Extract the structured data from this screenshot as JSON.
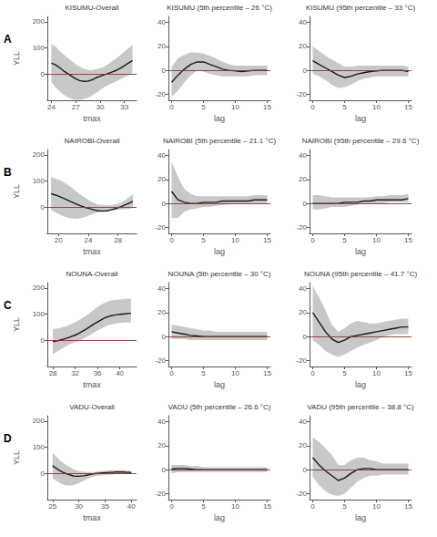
{
  "chart_data": [
    {
      "type": "line",
      "title": "KISUMU-Overall",
      "row_label": "A",
      "xlabel": "tmax",
      "ylabel": "YLL",
      "grid": false,
      "xlim": [
        23.5,
        34.5
      ],
      "ylim": [
        -100,
        220
      ],
      "xticks": [
        24,
        27,
        30,
        33
      ],
      "yticks": [
        0,
        100,
        200
      ],
      "color": "#1a1a1a",
      "band_color": "#c8c8c8",
      "ref_color": "#8b3535",
      "ref_line": 0,
      "x": [
        24.0,
        24.5,
        25.0,
        25.5,
        26.0,
        26.5,
        27.0,
        27.5,
        28.0,
        28.5,
        29.0,
        29.5,
        30.0,
        30.5,
        31.0,
        31.5,
        32.0,
        32.5,
        33.0,
        33.5,
        34.0
      ],
      "values": [
        42,
        35,
        25,
        12,
        2,
        -8,
        -18,
        -25,
        -28,
        -27,
        -22,
        -14,
        -8,
        -3,
        2,
        8,
        14,
        22,
        32,
        42,
        52
      ],
      "y_lo": [
        -30,
        -50,
        -65,
        -78,
        -88,
        -95,
        -98,
        -98,
        -95,
        -90,
        -82,
        -72,
        -60,
        -50,
        -42,
        -35,
        -28,
        -20,
        -12,
        -4,
        5
      ],
      "y_hi": [
        115,
        105,
        90,
        75,
        62,
        50,
        38,
        28,
        20,
        16,
        15,
        18,
        22,
        28,
        38,
        50,
        60,
        72,
        85,
        98,
        112
      ]
    },
    {
      "type": "line",
      "title": "KISUMU (5th percentile – 26 °C)",
      "xlabel": "lag",
      "grid": false,
      "xlim": [
        -0.5,
        15.5
      ],
      "ylim": [
        -25,
        45
      ],
      "xticks": [
        0,
        5,
        10,
        15
      ],
      "yticks": [
        -20,
        0,
        20,
        40
      ],
      "color": "#1a1a1a",
      "band_color": "#c8c8c8",
      "ref_color": "#8b3535",
      "ref_line": 0,
      "x": [
        0,
        1,
        2,
        3,
        4,
        5,
        6,
        7,
        8,
        9,
        10,
        11,
        12,
        13,
        14,
        15
      ],
      "values": [
        -10,
        -4,
        1,
        5,
        7,
        7,
        5,
        3,
        1,
        0,
        -0.5,
        -1,
        -0.5,
        0,
        0,
        0
      ],
      "y_lo": [
        -22,
        -17,
        -10,
        -4,
        0,
        -1,
        -3,
        -4,
        -5,
        -5,
        -5,
        -5,
        -5,
        -4,
        -4,
        -4
      ],
      "y_hi": [
        3,
        10,
        13,
        15,
        15,
        14,
        12,
        10,
        7,
        5,
        4,
        4,
        4,
        4,
        4,
        4
      ]
    },
    {
      "type": "line",
      "title": "KISUMU (95th percentile – 33 °C)",
      "xlabel": "lag",
      "grid": false,
      "xlim": [
        -0.5,
        15.5
      ],
      "ylim": [
        -25,
        45
      ],
      "xticks": [
        0,
        5,
        10,
        15
      ],
      "yticks": [
        -20,
        0,
        20,
        40
      ],
      "color": "#1a1a1a",
      "band_color": "#c8c8c8",
      "ref_color": "#8b3535",
      "ref_line": 0,
      "x": [
        0,
        1,
        2,
        3,
        4,
        5,
        6,
        7,
        8,
        9,
        10,
        11,
        12,
        13,
        14,
        15
      ],
      "values": [
        8,
        5,
        2,
        -1,
        -4,
        -6,
        -5,
        -3,
        -2,
        -1,
        -0.5,
        0,
        0,
        0,
        0,
        -1
      ],
      "y_lo": [
        -3,
        -5,
        -8,
        -12,
        -15,
        -14,
        -12,
        -9,
        -7,
        -6,
        -5,
        -5,
        -5,
        -5,
        -5,
        -5
      ],
      "y_hi": [
        20,
        16,
        12,
        9,
        6,
        3,
        3,
        4,
        4,
        4,
        4,
        4,
        4,
        4,
        4,
        3
      ]
    },
    {
      "type": "line",
      "title": "NAIROBI-Overall",
      "row_label": "B",
      "xlabel": "tmax",
      "ylabel": "YLL",
      "grid": false,
      "xlim": [
        18.5,
        30.5
      ],
      "ylim": [
        -100,
        220
      ],
      "xticks": [
        20,
        24,
        28
      ],
      "yticks": [
        0,
        100,
        200
      ],
      "color": "#1a1a1a",
      "band_color": "#c8c8c8",
      "ref_color": "#8b3535",
      "ref_line": 0,
      "x": [
        19,
        19.5,
        20.0,
        20.5,
        21.0,
        21.5,
        22.0,
        22.5,
        23.0,
        23.5,
        24.0,
        24.5,
        25.0,
        25.5,
        26.0,
        26.5,
        27.0,
        27.5,
        28.0,
        28.5,
        29.0,
        29.5,
        30.0
      ],
      "values": [
        52,
        47,
        42,
        36,
        30,
        23,
        17,
        11,
        5,
        0,
        -4,
        -8,
        -12,
        -14,
        -15,
        -14,
        -11,
        -7,
        -2,
        3,
        9,
        15,
        22
      ],
      "y_lo": [
        -10,
        -18,
        -25,
        -32,
        -38,
        -42,
        -44,
        -44,
        -42,
        -38,
        -33,
        -27,
        -22,
        -18,
        -15,
        -13,
        -11,
        -10,
        -10,
        -9,
        -8,
        -6,
        -3
      ],
      "y_hi": [
        115,
        110,
        105,
        98,
        90,
        80,
        70,
        58,
        47,
        38,
        28,
        20,
        14,
        10,
        8,
        7,
        8,
        10,
        14,
        18,
        28,
        38,
        50
      ]
    },
    {
      "type": "line",
      "title": "NAIROBI (5th percentile – 21.1 °C)",
      "xlabel": "lag",
      "grid": false,
      "xlim": [
        -0.5,
        15.5
      ],
      "ylim": [
        -25,
        45
      ],
      "xticks": [
        0,
        5,
        10,
        15
      ],
      "yticks": [
        -20,
        0,
        20,
        40
      ],
      "color": "#1a1a1a",
      "band_color": "#c8c8c8",
      "ref_color": "#8b3535",
      "ref_line": 0,
      "x": [
        0,
        1,
        2,
        3,
        4,
        5,
        6,
        7,
        8,
        9,
        10,
        11,
        12,
        13,
        14,
        15
      ],
      "values": [
        10,
        3,
        1,
        0,
        0,
        1,
        1,
        1,
        2,
        2,
        2,
        2,
        2,
        3,
        3,
        3
      ],
      "y_lo": [
        -12,
        -12,
        -7,
        -5,
        -4,
        -3,
        -3,
        -2,
        -1,
        -1,
        0,
        0,
        0,
        0,
        0,
        0
      ],
      "y_hi": [
        35,
        22,
        12,
        8,
        6,
        6,
        6,
        6,
        6,
        6,
        6,
        6,
        6,
        7,
        7,
        7
      ]
    },
    {
      "type": "line",
      "title": "NAIROBI (95th percentile – 29.6 °C)",
      "xlabel": "lag",
      "grid": false,
      "xlim": [
        -0.5,
        15.5
      ],
      "ylim": [
        -25,
        45
      ],
      "xticks": [
        0,
        5,
        10,
        15
      ],
      "yticks": [
        -20,
        0,
        20,
        40
      ],
      "color": "#1a1a1a",
      "band_color": "#c8c8c8",
      "ref_color": "#8b3535",
      "ref_line": 0,
      "x": [
        0,
        1,
        2,
        3,
        4,
        5,
        6,
        7,
        8,
        9,
        10,
        11,
        12,
        13,
        14,
        15
      ],
      "values": [
        0,
        0,
        0,
        0,
        0,
        1,
        1,
        1,
        2,
        2,
        3,
        3,
        3,
        3,
        3,
        4
      ],
      "y_lo": [
        -5,
        -5,
        -4,
        -3,
        -3,
        -3,
        -2,
        -1,
        0,
        0,
        0,
        0,
        1,
        1,
        1,
        1
      ],
      "y_hi": [
        7,
        7,
        6,
        5,
        5,
        5,
        5,
        5,
        5,
        5,
        6,
        6,
        7,
        7,
        7,
        8
      ]
    },
    {
      "type": "line",
      "title": "NOUNA-Overall",
      "row_label": "C",
      "xlabel": "tmax",
      "ylabel": "YLL",
      "grid": false,
      "xlim": [
        27,
        43
      ],
      "ylim": [
        -100,
        220
      ],
      "xticks": [
        28,
        32,
        36,
        40
      ],
      "yticks": [
        0,
        100,
        200
      ],
      "color": "#1a1a1a",
      "band_color": "#c8c8c8",
      "ref_color": "#8b3535",
      "ref_line": 0,
      "x": [
        28,
        28.5,
        29,
        29.5,
        30,
        30.5,
        31,
        31.5,
        32,
        32.5,
        33,
        33.5,
        34,
        34.5,
        35,
        35.5,
        36,
        36.5,
        37,
        37.5,
        38,
        38.5,
        39,
        39.5,
        40,
        40.5,
        41,
        41.5,
        42
      ],
      "values": [
        -5,
        -3,
        -1,
        2,
        5,
        8,
        12,
        16,
        20,
        25,
        31,
        37,
        43,
        50,
        57,
        64,
        70,
        76,
        82,
        87,
        91,
        94,
        96,
        98,
        99,
        100,
        101,
        102,
        103
      ],
      "y_lo": [
        -52,
        -46,
        -40,
        -33,
        -27,
        -21,
        -16,
        -11,
        -7,
        -3,
        1,
        6,
        12,
        18,
        24,
        31,
        37,
        43,
        49,
        54,
        58,
        61,
        63,
        65,
        66,
        67,
        68,
        68,
        69
      ],
      "y_hi": [
        42,
        44,
        46,
        48,
        51,
        55,
        59,
        64,
        69,
        75,
        81,
        88,
        95,
        103,
        111,
        119,
        127,
        134,
        140,
        145,
        149,
        152,
        154,
        155,
        156,
        157,
        158,
        158,
        159
      ]
    },
    {
      "type": "line",
      "title": "NOUNA (5th percentile – 30 °C)",
      "xlabel": "lag",
      "grid": false,
      "xlim": [
        -0.5,
        15.5
      ],
      "ylim": [
        -25,
        45
      ],
      "xticks": [
        0,
        5,
        10,
        15
      ],
      "yticks": [
        -20,
        0,
        20,
        40
      ],
      "color": "#1a1a1a",
      "band_color": "#c8c8c8",
      "ref_color": "#8b3535",
      "ref_line": 0,
      "x": [
        0,
        1,
        2,
        3,
        4,
        5,
        6,
        7,
        8,
        9,
        10,
        11,
        12,
        13,
        14,
        15
      ],
      "values": [
        4,
        3,
        2,
        1,
        0.5,
        0,
        0,
        0,
        0,
        0,
        0,
        0,
        0,
        0,
        0,
        0
      ],
      "y_lo": [
        -2,
        -2,
        -2,
        -3,
        -3,
        -3,
        -3,
        -3,
        -3,
        -3,
        -3,
        -3,
        -3,
        -3,
        -3,
        -3
      ],
      "y_hi": [
        10,
        9,
        8,
        7,
        6,
        5,
        5,
        4,
        4,
        4,
        4,
        4,
        4,
        4,
        4,
        4
      ]
    },
    {
      "type": "line",
      "title": "NOUNA (95th percentile – 41.7 °C)",
      "xlabel": "lag",
      "grid": false,
      "xlim": [
        -0.5,
        15.5
      ],
      "ylim": [
        -25,
        45
      ],
      "xticks": [
        0,
        5,
        10,
        15
      ],
      "yticks": [
        -20,
        0,
        20,
        40
      ],
      "color": "#1a1a1a",
      "band_color": "#c8c8c8",
      "ref_color": "#8b3535",
      "ref_line": 0,
      "x": [
        0,
        1,
        2,
        3,
        4,
        5,
        6,
        7,
        8,
        9,
        10,
        11,
        12,
        13,
        14,
        15
      ],
      "values": [
        20,
        12,
        4,
        -2,
        -5,
        -3,
        0,
        1,
        2,
        3,
        4,
        5,
        6,
        7,
        8,
        8
      ],
      "y_lo": [
        -3,
        -7,
        -12,
        -15,
        -17,
        -15,
        -12,
        -9,
        -7,
        -5,
        -3,
        0,
        1,
        2,
        2,
        2
      ],
      "y_hi": [
        42,
        33,
        22,
        10,
        4,
        7,
        11,
        13,
        12,
        11,
        11,
        12,
        13,
        14,
        15,
        15
      ]
    },
    {
      "type": "line",
      "title": "VADU-Overall",
      "row_label": "D",
      "xlabel": "tmax",
      "ylabel": "YLL",
      "grid": false,
      "xlim": [
        24,
        41
      ],
      "ylim": [
        -100,
        220
      ],
      "xticks": [
        25,
        30,
        35,
        40
      ],
      "yticks": [
        0,
        100,
        200
      ],
      "color": "#1a1a1a",
      "band_color": "#c8c8c8",
      "ref_color": "#8b3535",
      "ref_line": 0,
      "x": [
        25,
        25.5,
        26,
        26.5,
        27,
        27.5,
        28,
        28.5,
        29,
        29.5,
        30,
        30.5,
        31,
        31.5,
        32,
        32.5,
        33,
        33.5,
        34,
        34.5,
        35,
        35.5,
        36,
        36.5,
        37,
        37.5,
        38,
        38.5,
        39,
        39.5,
        40
      ],
      "values": [
        30,
        22,
        15,
        9,
        4,
        0,
        -4,
        -7,
        -10,
        -11,
        -11,
        -10,
        -9,
        -7,
        -5,
        -3,
        -1,
        0,
        1,
        2,
        3,
        3,
        4,
        4,
        5,
        5,
        5,
        5,
        4,
        4,
        3
      ],
      "y_lo": [
        -18,
        -26,
        -32,
        -38,
        -42,
        -45,
        -46,
        -46,
        -44,
        -41,
        -37,
        -32,
        -27,
        -22,
        -18,
        -14,
        -11,
        -9,
        -8,
        -7,
        -6,
        -5,
        -4,
        -4,
        -3,
        -3,
        -3,
        -3,
        -3,
        -3,
        -3
      ],
      "y_hi": [
        78,
        68,
        58,
        48,
        40,
        33,
        27,
        21,
        16,
        12,
        9,
        7,
        6,
        5,
        5,
        5,
        6,
        7,
        8,
        9,
        10,
        11,
        12,
        12,
        12,
        12,
        12,
        12,
        11,
        11,
        10
      ]
    },
    {
      "type": "line",
      "title": "VADU (5th percentile – 26.6 °C)",
      "xlabel": "lag",
      "grid": false,
      "xlim": [
        -0.5,
        15.5
      ],
      "ylim": [
        -25,
        45
      ],
      "xticks": [
        0,
        5,
        10,
        15
      ],
      "yticks": [
        -20,
        0,
        20,
        40
      ],
      "color": "#1a1a1a",
      "band_color": "#c8c8c8",
      "ref_color": "#8b3535",
      "ref_line": 0,
      "x": [
        0,
        1,
        2,
        3,
        4,
        5,
        6,
        7,
        8,
        9,
        10,
        11,
        12,
        13,
        14,
        15
      ],
      "values": [
        0.5,
        1,
        1,
        0.5,
        0,
        0,
        0,
        0,
        0,
        0,
        0,
        0,
        0,
        0,
        0,
        0
      ],
      "y_lo": [
        -3,
        -2,
        -2,
        -2,
        -2,
        -2,
        -2,
        -2,
        -2,
        -2,
        -2,
        -2,
        -2,
        -2,
        -2,
        -2
      ],
      "y_hi": [
        4,
        4,
        4,
        3,
        3,
        2,
        2,
        2,
        2,
        2,
        2,
        2,
        2,
        2,
        2,
        2
      ]
    },
    {
      "type": "line",
      "title": "VADU (95th percentile – 38.8 °C)",
      "xlabel": "lag",
      "grid": false,
      "xlim": [
        -0.5,
        15.5
      ],
      "ylim": [
        -25,
        45
      ],
      "xticks": [
        0,
        5,
        10,
        15
      ],
      "yticks": [
        -20,
        0,
        20,
        40
      ],
      "color": "#1a1a1a",
      "band_color": "#c8c8c8",
      "ref_color": "#8b3535",
      "ref_line": 0,
      "x": [
        0,
        1,
        2,
        3,
        4,
        5,
        6,
        7,
        8,
        9,
        10,
        11,
        12,
        13,
        14,
        15
      ],
      "values": [
        10,
        4,
        -1,
        -5,
        -9,
        -7,
        -3,
        0,
        1,
        1,
        0,
        0,
        0,
        0,
        0,
        0
      ],
      "y_lo": [
        -6,
        -13,
        -18,
        -21,
        -22,
        -20,
        -15,
        -10,
        -7,
        -5,
        -5,
        -4,
        -4,
        -4,
        -4,
        -4
      ],
      "y_hi": [
        27,
        23,
        18,
        12,
        4,
        4,
        8,
        10,
        10,
        8,
        7,
        5,
        5,
        5,
        5,
        5
      ]
    }
  ]
}
